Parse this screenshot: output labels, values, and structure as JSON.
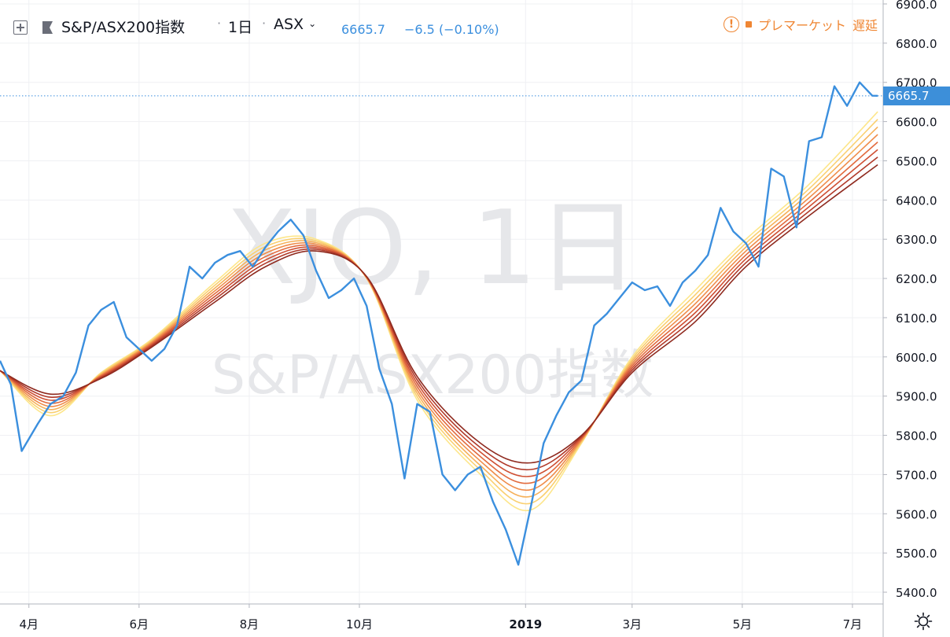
{
  "header": {
    "symbol_title": "S&P/ASX200指数",
    "interval": "1日",
    "exchange": "ASX",
    "last_price": "6665.7",
    "change": "−6.5 (−0.10%)",
    "status_label": "プレマーケット",
    "delay_label": "遅延"
  },
  "watermark": {
    "symbol": "XJO, 1日",
    "name": "S&P/ASX200指数"
  },
  "price_label": "6665.7",
  "colors": {
    "price_line": "#3b8fde",
    "status": "#ef8633",
    "ribbon": [
      "#fde68a",
      "#fad070",
      "#f6b15a",
      "#ef8c4a",
      "#e26b3e",
      "#cf5034",
      "#b13a2a",
      "#8f2a1f"
    ]
  },
  "icons": [
    "add-square-icon",
    "flag-icon",
    "chevron-down-icon",
    "warning-icon",
    "settings-icon"
  ],
  "chart_data": {
    "type": "line",
    "y_axis": {
      "ticks": [
        "6900.0",
        "6800.0",
        "6700.0",
        "6600.0",
        "6500.0",
        "6400.0",
        "6300.0",
        "6200.0",
        "6100.0",
        "6000.0",
        "5900.0",
        "5800.0",
        "5700.0",
        "5600.0",
        "5500.0",
        "5400.0"
      ],
      "range": [
        5370,
        6910
      ],
      "position": "right"
    },
    "x_axis": {
      "ticks": [
        "4月",
        "6月",
        "8月",
        "10月",
        "2019",
        "3月",
        "5月",
        "7月"
      ],
      "bold_ticks": [
        "2019"
      ],
      "range": [
        "2018-03-16",
        "2019-07-18"
      ]
    },
    "grid": true,
    "last_value": 6665.7,
    "price_series": {
      "name": "S&P/ASX200指数",
      "points": [
        [
          "2018-03-16",
          5990
        ],
        [
          "2018-03-22",
          5930
        ],
        [
          "2018-03-28",
          5760
        ],
        [
          "2018-04-06",
          5830
        ],
        [
          "2018-04-13",
          5880
        ],
        [
          "2018-04-20",
          5900
        ],
        [
          "2018-04-27",
          5960
        ],
        [
          "2018-05-04",
          6080
        ],
        [
          "2018-05-11",
          6120
        ],
        [
          "2018-05-18",
          6140
        ],
        [
          "2018-05-25",
          6050
        ],
        [
          "2018-06-01",
          6020
        ],
        [
          "2018-06-08",
          5990
        ],
        [
          "2018-06-15",
          6020
        ],
        [
          "2018-06-22",
          6080
        ],
        [
          "2018-06-29",
          6230
        ],
        [
          "2018-07-06",
          6200
        ],
        [
          "2018-07-13",
          6240
        ],
        [
          "2018-07-20",
          6260
        ],
        [
          "2018-07-27",
          6270
        ],
        [
          "2018-08-03",
          6230
        ],
        [
          "2018-08-10",
          6280
        ],
        [
          "2018-08-17",
          6320
        ],
        [
          "2018-08-24",
          6350
        ],
        [
          "2018-08-31",
          6310
        ],
        [
          "2018-09-07",
          6220
        ],
        [
          "2018-09-14",
          6150
        ],
        [
          "2018-09-21",
          6170
        ],
        [
          "2018-09-28",
          6200
        ],
        [
          "2018-10-05",
          6130
        ],
        [
          "2018-10-12",
          5970
        ],
        [
          "2018-10-19",
          5880
        ],
        [
          "2018-10-26",
          5690
        ],
        [
          "2018-11-02",
          5880
        ],
        [
          "2018-11-09",
          5860
        ],
        [
          "2018-11-16",
          5700
        ],
        [
          "2018-11-23",
          5660
        ],
        [
          "2018-11-30",
          5700
        ],
        [
          "2018-12-07",
          5720
        ],
        [
          "2018-12-14",
          5630
        ],
        [
          "2018-12-21",
          5560
        ],
        [
          "2018-12-28",
          5470
        ],
        [
          "2019-01-04",
          5620
        ],
        [
          "2019-01-11",
          5780
        ],
        [
          "2019-01-18",
          5850
        ],
        [
          "2019-01-25",
          5910
        ],
        [
          "2019-02-01",
          5940
        ],
        [
          "2019-02-08",
          6080
        ],
        [
          "2019-02-15",
          6110
        ],
        [
          "2019-02-22",
          6150
        ],
        [
          "2019-03-01",
          6190
        ],
        [
          "2019-03-08",
          6170
        ],
        [
          "2019-03-15",
          6180
        ],
        [
          "2019-03-22",
          6130
        ],
        [
          "2019-03-29",
          6190
        ],
        [
          "2019-04-05",
          6220
        ],
        [
          "2019-04-12",
          6260
        ],
        [
          "2019-04-19",
          6380
        ],
        [
          "2019-04-26",
          6320
        ],
        [
          "2019-05-03",
          6290
        ],
        [
          "2019-05-10",
          6230
        ],
        [
          "2019-05-17",
          6480
        ],
        [
          "2019-05-24",
          6460
        ],
        [
          "2019-05-31",
          6330
        ],
        [
          "2019-06-07",
          6550
        ],
        [
          "2019-06-14",
          6560
        ],
        [
          "2019-06-21",
          6690
        ],
        [
          "2019-06-28",
          6640
        ],
        [
          "2019-07-05",
          6700
        ],
        [
          "2019-07-12",
          6666
        ],
        [
          "2019-07-15",
          6665.7
        ]
      ]
    },
    "ribbon_series": {
      "count": 8,
      "order": "fast-to-slow",
      "upper_band": [
        [
          "2018-03-16",
          5965
        ],
        [
          "2018-04-13",
          5905
        ],
        [
          "2018-05-11",
          5945
        ],
        [
          "2018-06-08",
          6025
        ],
        [
          "2018-07-13",
          6140
        ],
        [
          "2018-08-10",
          6230
        ],
        [
          "2018-09-07",
          6270
        ],
        [
          "2018-10-05",
          6205
        ],
        [
          "2018-11-02",
          5950
        ],
        [
          "2018-12-07",
          5780
        ],
        [
          "2019-01-04",
          5730
        ],
        [
          "2019-02-01",
          5800
        ],
        [
          "2019-03-01",
          5960
        ],
        [
          "2019-04-05",
          6090
        ],
        [
          "2019-05-03",
          6230
        ],
        [
          "2019-06-07",
          6360
        ],
        [
          "2019-07-15",
          6490
        ]
      ],
      "lower_band": [
        [
          "2018-03-16",
          5965
        ],
        [
          "2018-04-13",
          5850
        ],
        [
          "2018-05-11",
          5960
        ],
        [
          "2018-06-08",
          6045
        ],
        [
          "2018-07-13",
          6190
        ],
        [
          "2018-08-10",
          6290
        ],
        [
          "2018-09-07",
          6300
        ],
        [
          "2018-10-05",
          6200
        ],
        [
          "2018-11-02",
          5890
        ],
        [
          "2018-12-07",
          5700
        ],
        [
          "2019-01-04",
          5610
        ],
        [
          "2019-02-01",
          5780
        ],
        [
          "2019-03-01",
          6000
        ],
        [
          "2019-04-05",
          6170
        ],
        [
          "2019-05-03",
          6300
        ],
        [
          "2019-06-07",
          6440
        ],
        [
          "2019-07-15",
          6625
        ]
      ]
    }
  }
}
